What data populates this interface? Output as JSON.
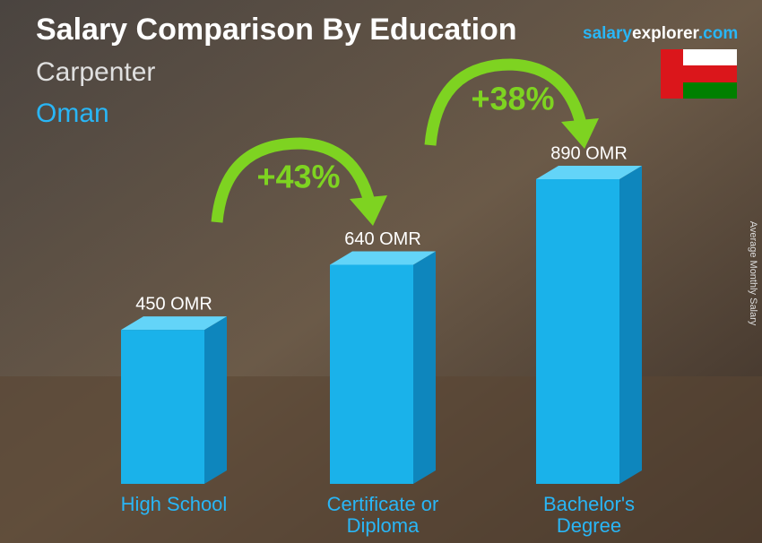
{
  "chart_data": {
    "type": "bar",
    "title": "Salary Comparison By Education",
    "subtitle": "Carpenter",
    "location": "Oman",
    "brand": [
      "salary",
      "explorer",
      ".com"
    ],
    "y_label": "Average Monthly Salary",
    "categories": [
      "High School",
      "Certificate or Diploma",
      "Bachelor's Degree"
    ],
    "values": [
      450,
      640,
      890
    ],
    "value_labels": [
      "450 OMR",
      "640 OMR",
      "890 OMR"
    ],
    "annotations": [
      "+43%",
      "+38%"
    ],
    "color": "#1ab2ea"
  }
}
